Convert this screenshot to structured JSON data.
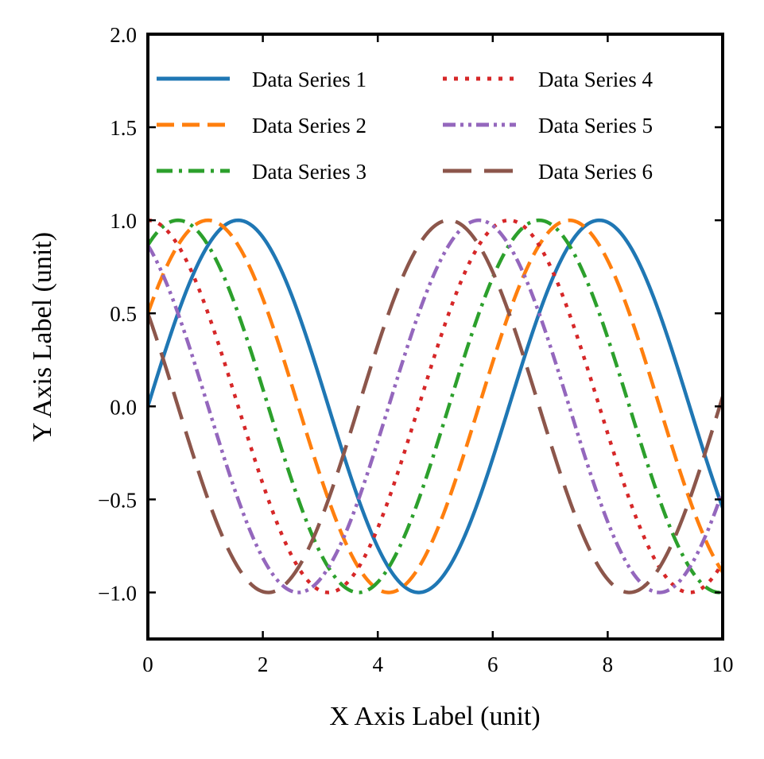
{
  "chart_data": {
    "type": "line",
    "xlabel": "X Axis Label (unit)",
    "ylabel": "Y Axis Label (unit)",
    "xlim": [
      0,
      10
    ],
    "ylim": [
      -1.25,
      2.0
    ],
    "x_ticks": [
      0,
      2,
      4,
      6,
      8,
      10
    ],
    "x_tick_labels": [
      "0",
      "2",
      "4",
      "6",
      "8",
      "10"
    ],
    "y_ticks": [
      -1.0,
      -0.5,
      0.0,
      0.5,
      1.0,
      1.5,
      2.0
    ],
    "y_tick_labels": [
      "−1.0",
      "−0.5",
      "0.0",
      "0.5",
      "1.0",
      "1.5",
      "2.0"
    ],
    "grid": false,
    "legend_placement": "top",
    "legend_columns": 2,
    "x_sample_points": [
      0,
      0.5,
      1,
      1.5,
      2,
      2.5,
      3,
      3.5,
      4,
      4.5,
      5,
      5.5,
      6,
      6.5,
      7,
      7.5,
      8,
      8.5,
      9,
      9.5,
      10
    ],
    "series": [
      {
        "name": "Data Series 1",
        "color": "#1f77b4",
        "linestyle": "solid",
        "phase": 0.0,
        "values": [
          0.0,
          0.479,
          0.841,
          0.997,
          0.909,
          0.598,
          0.141,
          -0.351,
          -0.757,
          -0.978,
          -0.959,
          -0.706,
          -0.279,
          0.215,
          0.657,
          0.938,
          0.989,
          0.798,
          0.412,
          -0.075,
          -0.544
        ]
      },
      {
        "name": "Data Series 2",
        "color": "#ff7f0e",
        "linestyle": "dashed",
        "phase": 0.5236,
        "values": [
          0.5,
          0.844,
          0.998,
          0.917,
          0.617,
          0.164,
          -0.324,
          -0.736,
          -0.971,
          -0.966,
          -0.726,
          -0.303,
          0.19,
          0.637,
          0.929,
          0.992,
          0.811,
          0.432,
          -0.05,
          -0.522,
          -0.875
        ]
      },
      {
        "name": "Data Series 3",
        "color": "#2ca02c",
        "linestyle": "dashdot",
        "phase": 1.0472,
        "values": [
          0.866,
          0.999,
          0.918,
          0.616,
          0.159,
          -0.331,
          -0.743,
          -0.974,
          -0.965,
          -0.721,
          -0.295,
          0.199,
          0.645,
          0.934,
          0.991,
          0.808,
          0.428,
          -0.055,
          -0.527,
          -0.878,
          -1.0
        ]
      },
      {
        "name": "Data Series 4",
        "color": "#d62728",
        "linestyle": "dotted",
        "phase": 1.5708,
        "values": [
          1.0,
          0.878,
          0.54,
          0.071,
          -0.416,
          -0.801,
          -0.99,
          -0.936,
          -0.654,
          -0.211,
          0.284,
          0.709,
          0.96,
          0.977,
          0.754,
          0.347,
          -0.146,
          -0.602,
          -0.911,
          -0.997,
          -0.839
        ]
      },
      {
        "name": "Data Series 5",
        "color": "#9467bd",
        "linestyle": "dashdotdot",
        "phase": 2.0944,
        "values": [
          0.866,
          0.512,
          0.029,
          -0.456,
          -0.833,
          -0.999,
          -0.913,
          -0.6,
          -0.133,
          0.359,
          0.772,
          0.986,
          0.951,
          0.679,
          0.242,
          -0.25,
          -0.688,
          -0.954,
          -0.978,
          -0.754,
          -0.34
        ]
      },
      {
        "name": "Data Series 6",
        "color": "#8c564b",
        "linestyle": "longdash",
        "phase": 2.618,
        "values": [
          0.5,
          0.023,
          -0.459,
          -0.834,
          -0.999,
          -0.913,
          -0.598,
          -0.128,
          0.365,
          0.777,
          0.988,
          0.948,
          0.671,
          0.232,
          -0.26,
          -0.695,
          -0.958,
          -0.977,
          -0.749,
          -0.331,
          0.157
        ]
      }
    ]
  }
}
